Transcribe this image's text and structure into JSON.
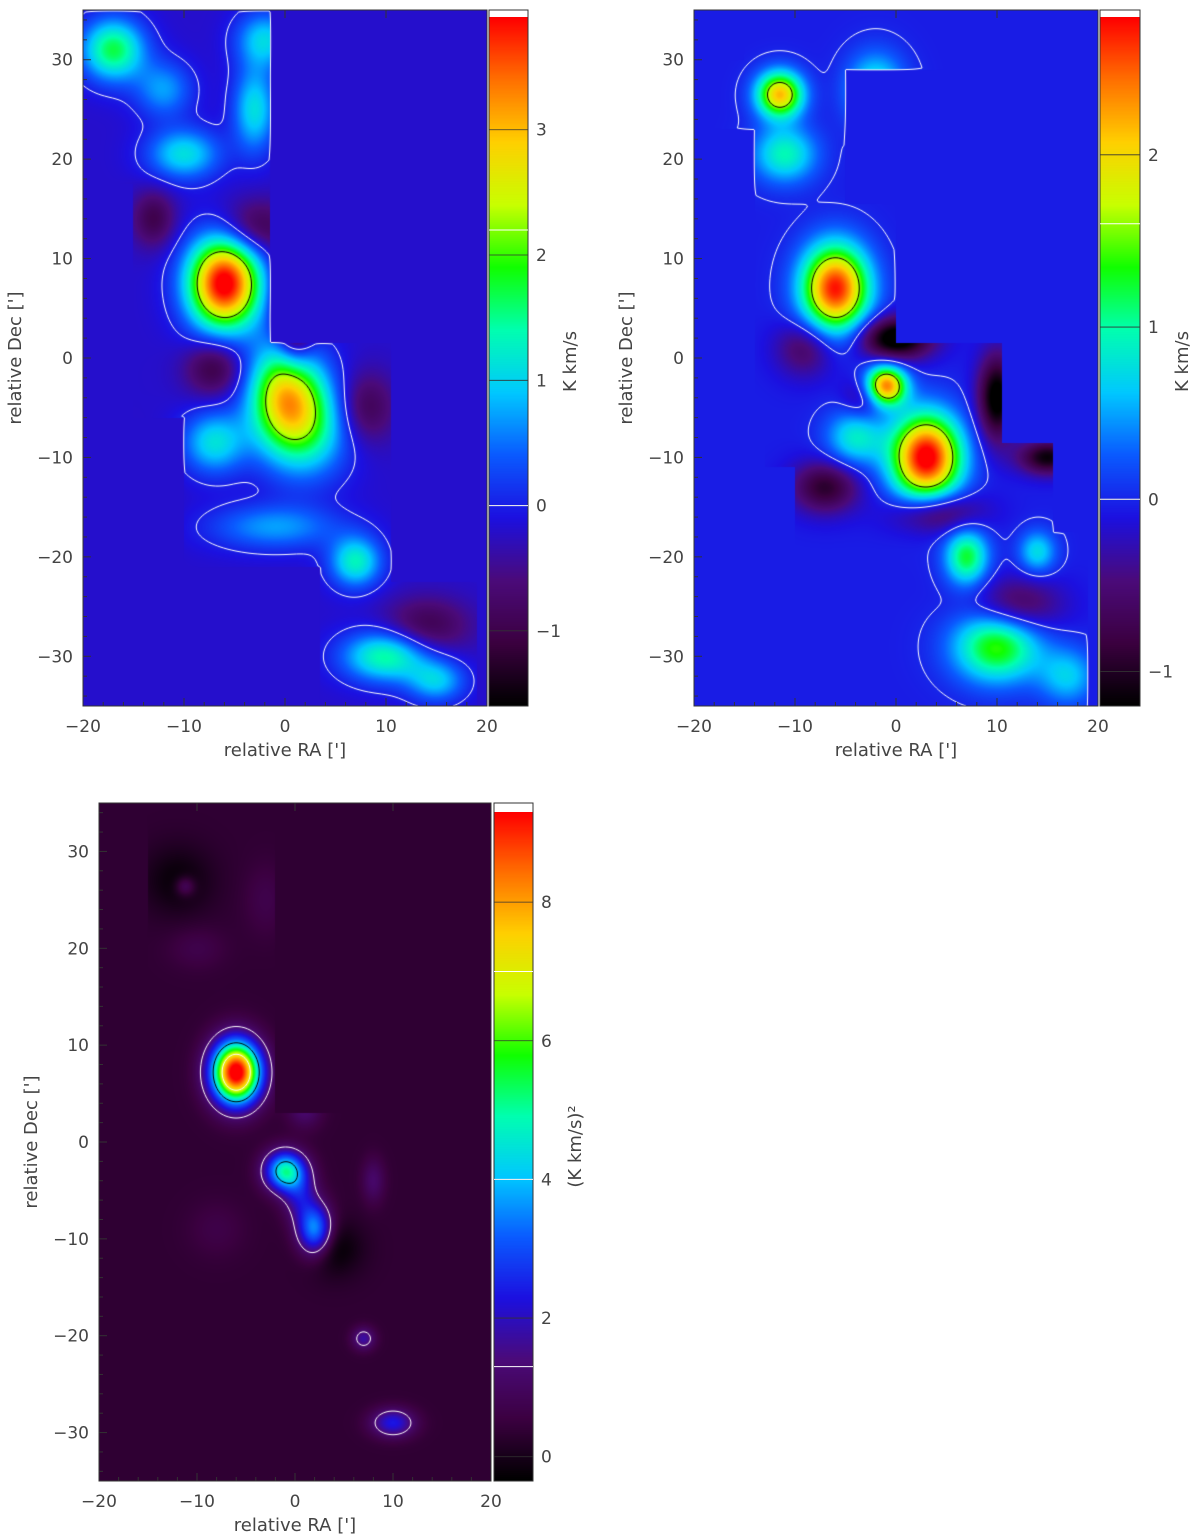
{
  "colormap": [
    "#000000",
    "#3b0040",
    "#4b0a7a",
    "#1c10e0",
    "#0a5aff",
    "#00c8ff",
    "#00ffb0",
    "#10ff00",
    "#c8ff00",
    "#ffd000",
    "#ff7000",
    "#ff0000"
  ],
  "contour_colors": {
    "low": "#ffffff",
    "high": "#000000"
  },
  "chart_data": [
    {
      "type": "heatmap",
      "panel": "top-left",
      "title": "",
      "xlabel": "relative RA [']",
      "ylabel": "relative Dec [']",
      "xlim": [
        -20,
        20
      ],
      "ylim": [
        -35,
        35
      ],
      "x_ticks": [
        -20,
        -10,
        0,
        10,
        20
      ],
      "y_ticks": [
        -30,
        -20,
        -10,
        0,
        10,
        20,
        30
      ],
      "colorbar": {
        "label": "K km/s",
        "range": [
          -1.6,
          3.9
        ],
        "ticks": [
          -1,
          0,
          1,
          2,
          3
        ]
      },
      "background_value": -0.2,
      "coverage_polygon": [
        [
          -20,
          35
        ],
        [
          -1.5,
          35
        ],
        [
          -1.5,
          1.5
        ],
        [
          10.5,
          1.5
        ],
        [
          10.5,
          -22.5
        ],
        [
          19,
          -22.5
        ],
        [
          19,
          -35
        ],
        [
          3.5,
          -35
        ],
        [
          3.5,
          -21
        ],
        [
          -10,
          -21
        ],
        [
          -10,
          -6
        ],
        [
          -15,
          -6
        ],
        [
          -15,
          17.5
        ],
        [
          -20,
          17.5
        ]
      ],
      "components": [
        {
          "x": -6,
          "y": 7.5,
          "amp": 4.3,
          "sx": 2.5,
          "sy": 3.2
        },
        {
          "x": 0,
          "y": -3.5,
          "amp": 2.6,
          "sx": 2.5,
          "sy": 3.5
        },
        {
          "x": 2,
          "y": -7,
          "amp": 1.6,
          "sx": 3,
          "sy": 3.5
        },
        {
          "x": -17,
          "y": 31,
          "amp": 1.9,
          "sx": 2.2,
          "sy": 2.2
        },
        {
          "x": -3,
          "y": 25,
          "amp": 1.3,
          "sx": 1.5,
          "sy": 3
        },
        {
          "x": -2,
          "y": 32,
          "amp": 1.2,
          "sx": 2,
          "sy": 2
        },
        {
          "x": -10,
          "y": 20.5,
          "amp": 1.3,
          "sx": 2.5,
          "sy": 1.8
        },
        {
          "x": -12,
          "y": 27,
          "amp": 0.9,
          "sx": 2,
          "sy": 2
        },
        {
          "x": -7,
          "y": -8.5,
          "amp": 1.3,
          "sx": 2.2,
          "sy": 2.2
        },
        {
          "x": 7,
          "y": -20.5,
          "amp": 1.5,
          "sx": 1.8,
          "sy": 1.8
        },
        {
          "x": 10,
          "y": -30,
          "amp": 1.7,
          "sx": 3,
          "sy": 1.8
        },
        {
          "x": 15,
          "y": -32.5,
          "amp": 1.1,
          "sx": 2,
          "sy": 1.5
        },
        {
          "x": -1,
          "y": -17,
          "amp": 0.9,
          "sx": 4.5,
          "sy": 1.6
        },
        {
          "x": 1,
          "y": 5,
          "amp": -2.0,
          "sx": 1.3,
          "sy": 3.5
        },
        {
          "x": -3,
          "y": 13,
          "amp": -0.9,
          "sx": 2.5,
          "sy": 2
        },
        {
          "x": -7,
          "y": -1,
          "amp": -0.9,
          "sx": 2,
          "sy": 2
        },
        {
          "x": -14,
          "y": -15.5,
          "amp": -1.0,
          "sx": 1.5,
          "sy": 3
        },
        {
          "x": 8,
          "y": -5,
          "amp": -0.8,
          "sx": 2,
          "sy": 2.5
        },
        {
          "x": 14,
          "y": -27,
          "amp": -0.8,
          "sx": 3,
          "sy": 2
        },
        {
          "x": -13,
          "y": 14,
          "amp": -0.8,
          "sx": 1.5,
          "sy": 2
        }
      ],
      "contours": [
        0,
        2.2
      ]
    },
    {
      "type": "heatmap",
      "panel": "top-right",
      "title": "",
      "xlabel": "relative RA [']",
      "ylabel": "relative Dec [']",
      "xlim": [
        -20,
        20
      ],
      "ylim": [
        -35,
        35
      ],
      "x_ticks": [
        -20,
        -10,
        0,
        10,
        20
      ],
      "y_ticks": [
        -30,
        -20,
        -10,
        0,
        10,
        20,
        30
      ],
      "colorbar": {
        "label": "K km/s",
        "range": [
          -1.2,
          2.8
        ],
        "ticks": [
          -1,
          0,
          1,
          2
        ]
      },
      "background_value": -0.05,
      "coverage_polygon": [
        [
          -20,
          30
        ],
        [
          -15,
          30
        ],
        [
          -15,
          35
        ],
        [
          5,
          35
        ],
        [
          5,
          29
        ],
        [
          -5,
          29
        ],
        [
          -5,
          15.5
        ],
        [
          0,
          15.5
        ],
        [
          0,
          1.5
        ],
        [
          10.5,
          1.5
        ],
        [
          10.5,
          -3
        ],
        [
          10.5,
          -8.5
        ],
        [
          15.5,
          -8.5
        ],
        [
          15.5,
          -17.5
        ],
        [
          19,
          -17.5
        ],
        [
          19,
          -35
        ],
        [
          -1.5,
          -35
        ],
        [
          -1.5,
          -20
        ],
        [
          -10,
          -20
        ],
        [
          -10,
          -11
        ],
        [
          -13,
          -11
        ],
        [
          -13,
          -5
        ],
        [
          -14,
          -5
        ],
        [
          -14,
          23
        ],
        [
          -18,
          23
        ],
        [
          -18,
          26
        ],
        [
          -20,
          26
        ]
      ],
      "components": [
        {
          "x": -6,
          "y": 7,
          "amp": 2.8,
          "sx": 2.3,
          "sy": 3
        },
        {
          "x": 3,
          "y": -10,
          "amp": 3.0,
          "sx": 2.4,
          "sy": 3
        },
        {
          "x": -1,
          "y": -2.8,
          "amp": 2.5,
          "sx": 1.4,
          "sy": 1.4
        },
        {
          "x": -11.5,
          "y": 26.5,
          "amp": 2.2,
          "sx": 1.6,
          "sy": 1.6
        },
        {
          "x": -11,
          "y": 20.5,
          "amp": 1.0,
          "sx": 2.2,
          "sy": 2
        },
        {
          "x": -2,
          "y": 27,
          "amp": 1.0,
          "sx": 2,
          "sy": 2.5
        },
        {
          "x": -4,
          "y": -8,
          "amp": 0.9,
          "sx": 2,
          "sy": 2
        },
        {
          "x": 7,
          "y": -20,
          "amp": 1.3,
          "sx": 1.5,
          "sy": 2
        },
        {
          "x": 10,
          "y": -29,
          "amp": 1.5,
          "sx": 3,
          "sy": 2.5
        },
        {
          "x": 14,
          "y": -19.5,
          "amp": 0.8,
          "sx": 1.3,
          "sy": 1.5
        },
        {
          "x": 17,
          "y": -32,
          "amp": 0.7,
          "sx": 2,
          "sy": 2
        },
        {
          "x": 0,
          "y": 2,
          "amp": -1.4,
          "sx": 2.5,
          "sy": 1.5
        },
        {
          "x": 10,
          "y": -4,
          "amp": -1.3,
          "sx": 1.3,
          "sy": 3
        },
        {
          "x": 15,
          "y": -10,
          "amp": -1.1,
          "sx": 2,
          "sy": 1.2
        },
        {
          "x": -7,
          "y": -13,
          "amp": -0.9,
          "sx": 2.3,
          "sy": 1.8
        },
        {
          "x": 4,
          "y": -15.5,
          "amp": -0.8,
          "sx": 3,
          "sy": 1.5
        },
        {
          "x": 12,
          "y": -25,
          "amp": -0.7,
          "sx": 3,
          "sy": 2
        },
        {
          "x": -9,
          "y": 1,
          "amp": -0.6,
          "sx": 2,
          "sy": 2
        },
        {
          "x": -3,
          "y": -4,
          "amp": -0.5,
          "sx": 1.5,
          "sy": 1.5
        }
      ],
      "contours": [
        0,
        1.6
      ]
    },
    {
      "type": "heatmap",
      "panel": "bottom-left",
      "title": "",
      "xlabel": "relative RA [']",
      "ylabel": "relative Dec [']",
      "xlim": [
        -20,
        20
      ],
      "ylim": [
        -35,
        35
      ],
      "x_ticks": [
        -20,
        -10,
        0,
        10,
        20
      ],
      "y_ticks": [
        -30,
        -20,
        -10,
        0,
        10,
        20,
        30
      ],
      "colorbar": {
        "label": "(K km/s)²",
        "range": [
          -0.35,
          9.3
        ],
        "ticks": [
          0,
          2,
          4,
          6,
          8
        ]
      },
      "background_value": 0.35,
      "coverage_polygon": [
        [
          -20,
          29.5
        ],
        [
          -15,
          29.5
        ],
        [
          -15,
          35
        ],
        [
          -2,
          35
        ],
        [
          -2,
          3
        ],
        [
          10.5,
          3
        ],
        [
          10.5,
          -22.5
        ],
        [
          19,
          -22.5
        ],
        [
          19,
          -35
        ],
        [
          3.5,
          -35
        ],
        [
          3.5,
          -22.5
        ],
        [
          -10,
          -22.5
        ],
        [
          -10,
          -14
        ],
        [
          -15,
          -14
        ],
        [
          -15,
          -4
        ],
        [
          -15,
          29.5
        ]
      ],
      "components": [
        {
          "x": -6,
          "y": 7.2,
          "amp": 9.5,
          "sx": 1.7,
          "sy": 2.2
        },
        {
          "x": -1,
          "y": -3,
          "amp": 4.5,
          "sx": 1.4,
          "sy": 1.4
        },
        {
          "x": 2,
          "y": -9,
          "amp": 3.3,
          "sx": 1.2,
          "sy": 1.8
        },
        {
          "x": 0.5,
          "y": -5.5,
          "amp": 1.5,
          "sx": 1.2,
          "sy": 1.8
        },
        {
          "x": 10,
          "y": -29,
          "amp": 2.0,
          "sx": 1.5,
          "sy": 1.0
        },
        {
          "x": 7,
          "y": -20.3,
          "amp": 1.4,
          "sx": 0.8,
          "sy": 0.8
        },
        {
          "x": -11.2,
          "y": 26.4,
          "amp": 1.0,
          "sx": 0.7,
          "sy": 0.7
        },
        {
          "x": 1,
          "y": 3.5,
          "amp": 0.9,
          "sx": 1.2,
          "sy": 1.4
        },
        {
          "x": 8,
          "y": -4,
          "amp": 0.8,
          "sx": 0.8,
          "sy": 1.6
        },
        {
          "x": 4,
          "y": -11,
          "amp": -0.7,
          "sx": 2,
          "sy": 2
        },
        {
          "x": -12,
          "y": 27,
          "amp": -0.6,
          "sx": 2.5,
          "sy": 2.5
        },
        {
          "x": -10,
          "y": 20,
          "amp": 0.35,
          "sx": 2,
          "sy": 1.5
        },
        {
          "x": -3,
          "y": 25,
          "amp": 0.35,
          "sx": 1.5,
          "sy": 2.5
        },
        {
          "x": -8,
          "y": -9,
          "amp": 0.3,
          "sx": 2,
          "sy": 2
        }
      ],
      "contours": [
        1.3,
        4.0,
        7.0
      ]
    }
  ]
}
